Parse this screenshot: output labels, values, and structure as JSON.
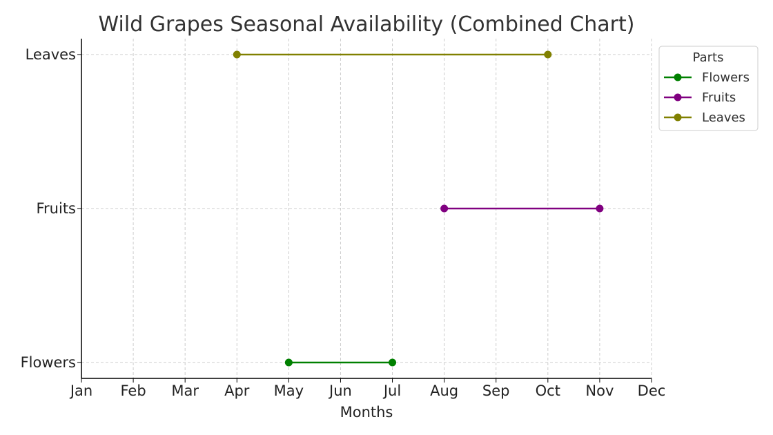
{
  "chart_data": {
    "type": "line",
    "title": "Wild Grapes Seasonal Availability (Combined Chart)",
    "xlabel": "Months",
    "ylabel": "",
    "x_categories": [
      "Jan",
      "Feb",
      "Mar",
      "Apr",
      "May",
      "Jun",
      "Jul",
      "Aug",
      "Sep",
      "Oct",
      "Nov",
      "Dec"
    ],
    "y_categories": [
      "Flowers",
      "Fruits",
      "Leaves"
    ],
    "grid": true,
    "legend": {
      "title": "Parts",
      "placement": "outside-top-right"
    },
    "series": [
      {
        "name": "Flowers",
        "color": "#008000",
        "start": "May",
        "end": "Jul",
        "category": "Flowers"
      },
      {
        "name": "Fruits",
        "color": "#800080",
        "start": "Aug",
        "end": "Nov",
        "category": "Fruits"
      },
      {
        "name": "Leaves",
        "color": "#808000",
        "start": "Apr",
        "end": "Oct",
        "category": "Leaves"
      }
    ]
  }
}
